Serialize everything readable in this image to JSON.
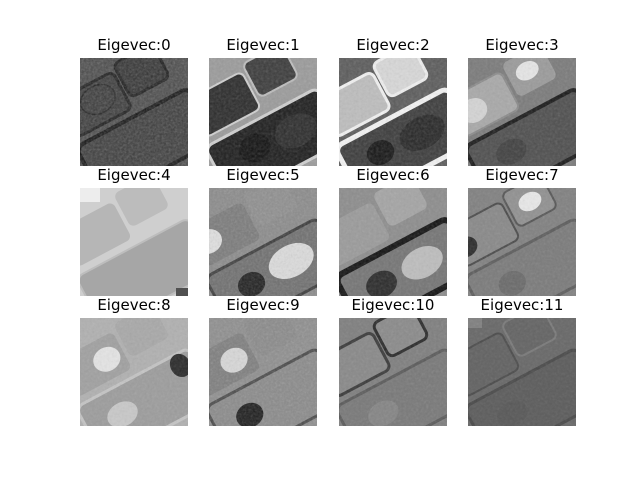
{
  "figure": {
    "panels": [
      {
        "title": "Eigevec:0"
      },
      {
        "title": "Eigevec:1"
      },
      {
        "title": "Eigevec:2"
      },
      {
        "title": "Eigevec:3"
      },
      {
        "title": "Eigevec:4"
      },
      {
        "title": "Eigevec:5"
      },
      {
        "title": "Eigevec:6"
      },
      {
        "title": "Eigevec:7"
      },
      {
        "title": "Eigevec:8"
      },
      {
        "title": "Eigevec:9"
      },
      {
        "title": "Eigevec:10"
      },
      {
        "title": "Eigevec:11"
      }
    ]
  }
}
